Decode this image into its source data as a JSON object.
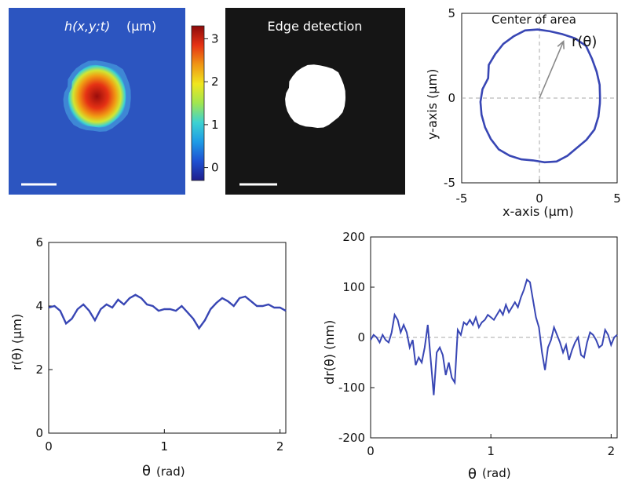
{
  "chart_data": [
    {
      "type": "heatmap",
      "title_math": "h(x,y;t)",
      "title_unit": "(µm)",
      "colorbar_ticks": [
        "0",
        "1",
        "2",
        "3"
      ],
      "colorbar_range": [
        -0.3,
        3.3
      ],
      "colormap": [
        "#1e1e8c",
        "#1e50d2",
        "#1e9be6",
        "#3cd2d2",
        "#a0e650",
        "#f0e61e",
        "#f09614",
        "#e63214",
        "#8c0a0a"
      ],
      "background_color": "#2c55c0",
      "scale_bar": true
    },
    {
      "type": "image",
      "title": "Edge detection",
      "background_color": "#151515",
      "foreground_color": "#ffffff",
      "scale_bar": true
    },
    {
      "type": "line",
      "annotation_title": "Center of area",
      "annotation_label": "r(θ)",
      "xlabel": "x-axis (µm)",
      "ylabel": "y-axis (µm)",
      "xlim": [
        -5,
        5
      ],
      "ylim": [
        -5,
        5
      ],
      "xticks": [
        "-5",
        "0",
        "5"
      ],
      "yticks": [
        "-5",
        "0",
        "5"
      ],
      "line_color": "#3846b4",
      "series": [
        {
          "theta_rad": [
            0,
            0.2,
            0.4,
            0.6,
            0.8,
            1.0,
            1.2,
            1.4,
            1.6,
            1.8,
            2.0,
            2.2,
            2.4,
            2.6,
            2.8,
            3.0,
            3.2,
            3.4,
            3.6,
            3.8,
            4.0,
            4.2,
            4.4,
            4.6,
            4.8,
            5.0,
            5.2,
            5.4,
            5.6,
            5.8,
            6.0,
            6.2,
            6.283
          ],
          "r_um": [
            3.9,
            3.95,
            4.0,
            4.1,
            4.3,
            4.2,
            4.05,
            4.0,
            4.05,
            4.1,
            4.0,
            3.95,
            3.85,
            3.8,
            3.5,
            3.7,
            3.8,
            3.85,
            3.9,
            3.95,
            4.0,
            3.9,
            3.8,
            3.7,
            3.8,
            3.9,
            3.85,
            3.8,
            3.9,
            4.0,
            3.95,
            3.9,
            3.9
          ]
        }
      ]
    },
    {
      "type": "line",
      "xlabel_symbol": "θ",
      "xlabel_unit": "(rad)",
      "ylabel": "r(θ) (µm)",
      "xlim": [
        0,
        2.05
      ],
      "ylim": [
        0,
        6
      ],
      "xticks": [
        "0",
        "1",
        "2"
      ],
      "yticks": [
        "0",
        "2",
        "4",
        "6"
      ],
      "line_color": "#3846b4",
      "series": [
        {
          "x": [
            0,
            0.05,
            0.1,
            0.15,
            0.2,
            0.25,
            0.3,
            0.35,
            0.4,
            0.45,
            0.5,
            0.55,
            0.6,
            0.65,
            0.7,
            0.75,
            0.8,
            0.85,
            0.9,
            0.95,
            1.0,
            1.05,
            1.1,
            1.15,
            1.2,
            1.25,
            1.3,
            1.35,
            1.4,
            1.45,
            1.5,
            1.55,
            1.6,
            1.65,
            1.7,
            1.75,
            1.8,
            1.85,
            1.9,
            1.95,
            2.0,
            2.05
          ],
          "y": [
            3.95,
            4.0,
            3.85,
            3.45,
            3.6,
            3.9,
            4.05,
            3.85,
            3.55,
            3.9,
            4.05,
            3.95,
            4.2,
            4.05,
            4.25,
            4.35,
            4.25,
            4.05,
            4.0,
            3.85,
            3.9,
            3.9,
            3.85,
            4.0,
            3.8,
            3.6,
            3.3,
            3.55,
            3.9,
            4.1,
            4.25,
            4.15,
            4.0,
            4.25,
            4.3,
            4.15,
            4.0,
            4.0,
            4.05,
            3.95,
            3.95,
            3.85
          ]
        }
      ]
    },
    {
      "type": "line",
      "xlabel_symbol": "θ",
      "xlabel_unit": "(rad)",
      "ylabel": "dr(θ) (nm)",
      "xlim": [
        0,
        2.05
      ],
      "ylim": [
        -200,
        200
      ],
      "xticks": [
        "0",
        "1",
        "2"
      ],
      "yticks": [
        "-200",
        "-100",
        "0",
        "100",
        "200"
      ],
      "zero_line": true,
      "line_color": "#3846b4",
      "series": [
        {
          "x": [
            0,
            0.025,
            0.05,
            0.075,
            0.1,
            0.125,
            0.15,
            0.175,
            0.2,
            0.225,
            0.25,
            0.275,
            0.3,
            0.325,
            0.35,
            0.375,
            0.4,
            0.425,
            0.45,
            0.475,
            0.5,
            0.525,
            0.55,
            0.575,
            0.6,
            0.625,
            0.65,
            0.675,
            0.7,
            0.725,
            0.75,
            0.775,
            0.8,
            0.825,
            0.85,
            0.875,
            0.9,
            0.925,
            0.95,
            0.975,
            1.0,
            1.025,
            1.05,
            1.075,
            1.1,
            1.125,
            1.15,
            1.175,
            1.2,
            1.225,
            1.25,
            1.275,
            1.3,
            1.325,
            1.35,
            1.375,
            1.4,
            1.425,
            1.45,
            1.475,
            1.5,
            1.525,
            1.55,
            1.575,
            1.6,
            1.625,
            1.65,
            1.675,
            1.7,
            1.725,
            1.75,
            1.775,
            1.8,
            1.825,
            1.85,
            1.875,
            1.9,
            1.925,
            1.95,
            1.975,
            2.0,
            2.025,
            2.05
          ],
          "y": [
            -5,
            5,
            0,
            -10,
            5,
            -5,
            -10,
            10,
            45,
            35,
            10,
            25,
            10,
            -20,
            -5,
            -55,
            -40,
            -50,
            -20,
            25,
            -45,
            -115,
            -30,
            -20,
            -35,
            -75,
            -50,
            -80,
            -90,
            15,
            5,
            30,
            25,
            35,
            25,
            40,
            20,
            30,
            35,
            45,
            40,
            35,
            45,
            55,
            45,
            65,
            50,
            60,
            70,
            60,
            80,
            95,
            115,
            110,
            75,
            40,
            20,
            -30,
            -65,
            -20,
            -5,
            20,
            5,
            -10,
            -30,
            -15,
            -45,
            -25,
            -10,
            0,
            -35,
            -40,
            -10,
            10,
            5,
            -5,
            -20,
            -15,
            15,
            5,
            -15,
            0,
            5
          ]
        }
      ]
    }
  ]
}
